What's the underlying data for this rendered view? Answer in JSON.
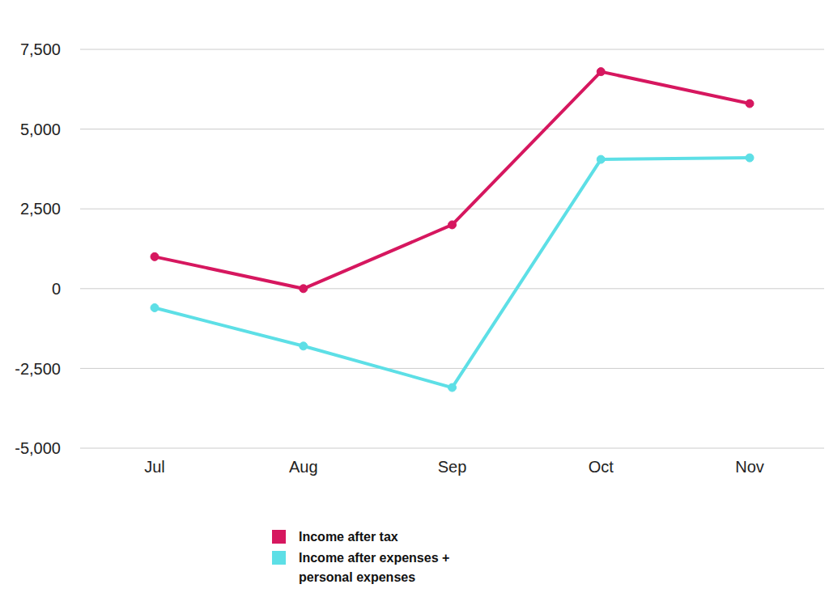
{
  "chart_data": {
    "type": "line",
    "categories": [
      "Jul",
      "Aug",
      "Sep",
      "Oct",
      "Nov"
    ],
    "series": [
      {
        "name": "Income after tax",
        "color": "#d6175f",
        "values": [
          1000,
          0,
          2000,
          6800,
          5800
        ],
        "marker": "circle"
      },
      {
        "name": "Income after expenses + personal expenses",
        "color": "#5ddfe6",
        "values": [
          -600,
          -1800,
          -3100,
          4050,
          4100
        ],
        "marker": "circle"
      }
    ],
    "ylim": [
      -5000,
      7500
    ],
    "yticks": [
      {
        "value": -5000,
        "label": "-5,000"
      },
      {
        "value": -2500,
        "label": "-2,500"
      },
      0,
      {
        "value": 2500,
        "label": "2,500"
      },
      {
        "value": 5000,
        "label": "5,000"
      },
      {
        "value": 7500,
        "label": "7,500"
      }
    ],
    "grid": true,
    "legend": "bottom"
  }
}
